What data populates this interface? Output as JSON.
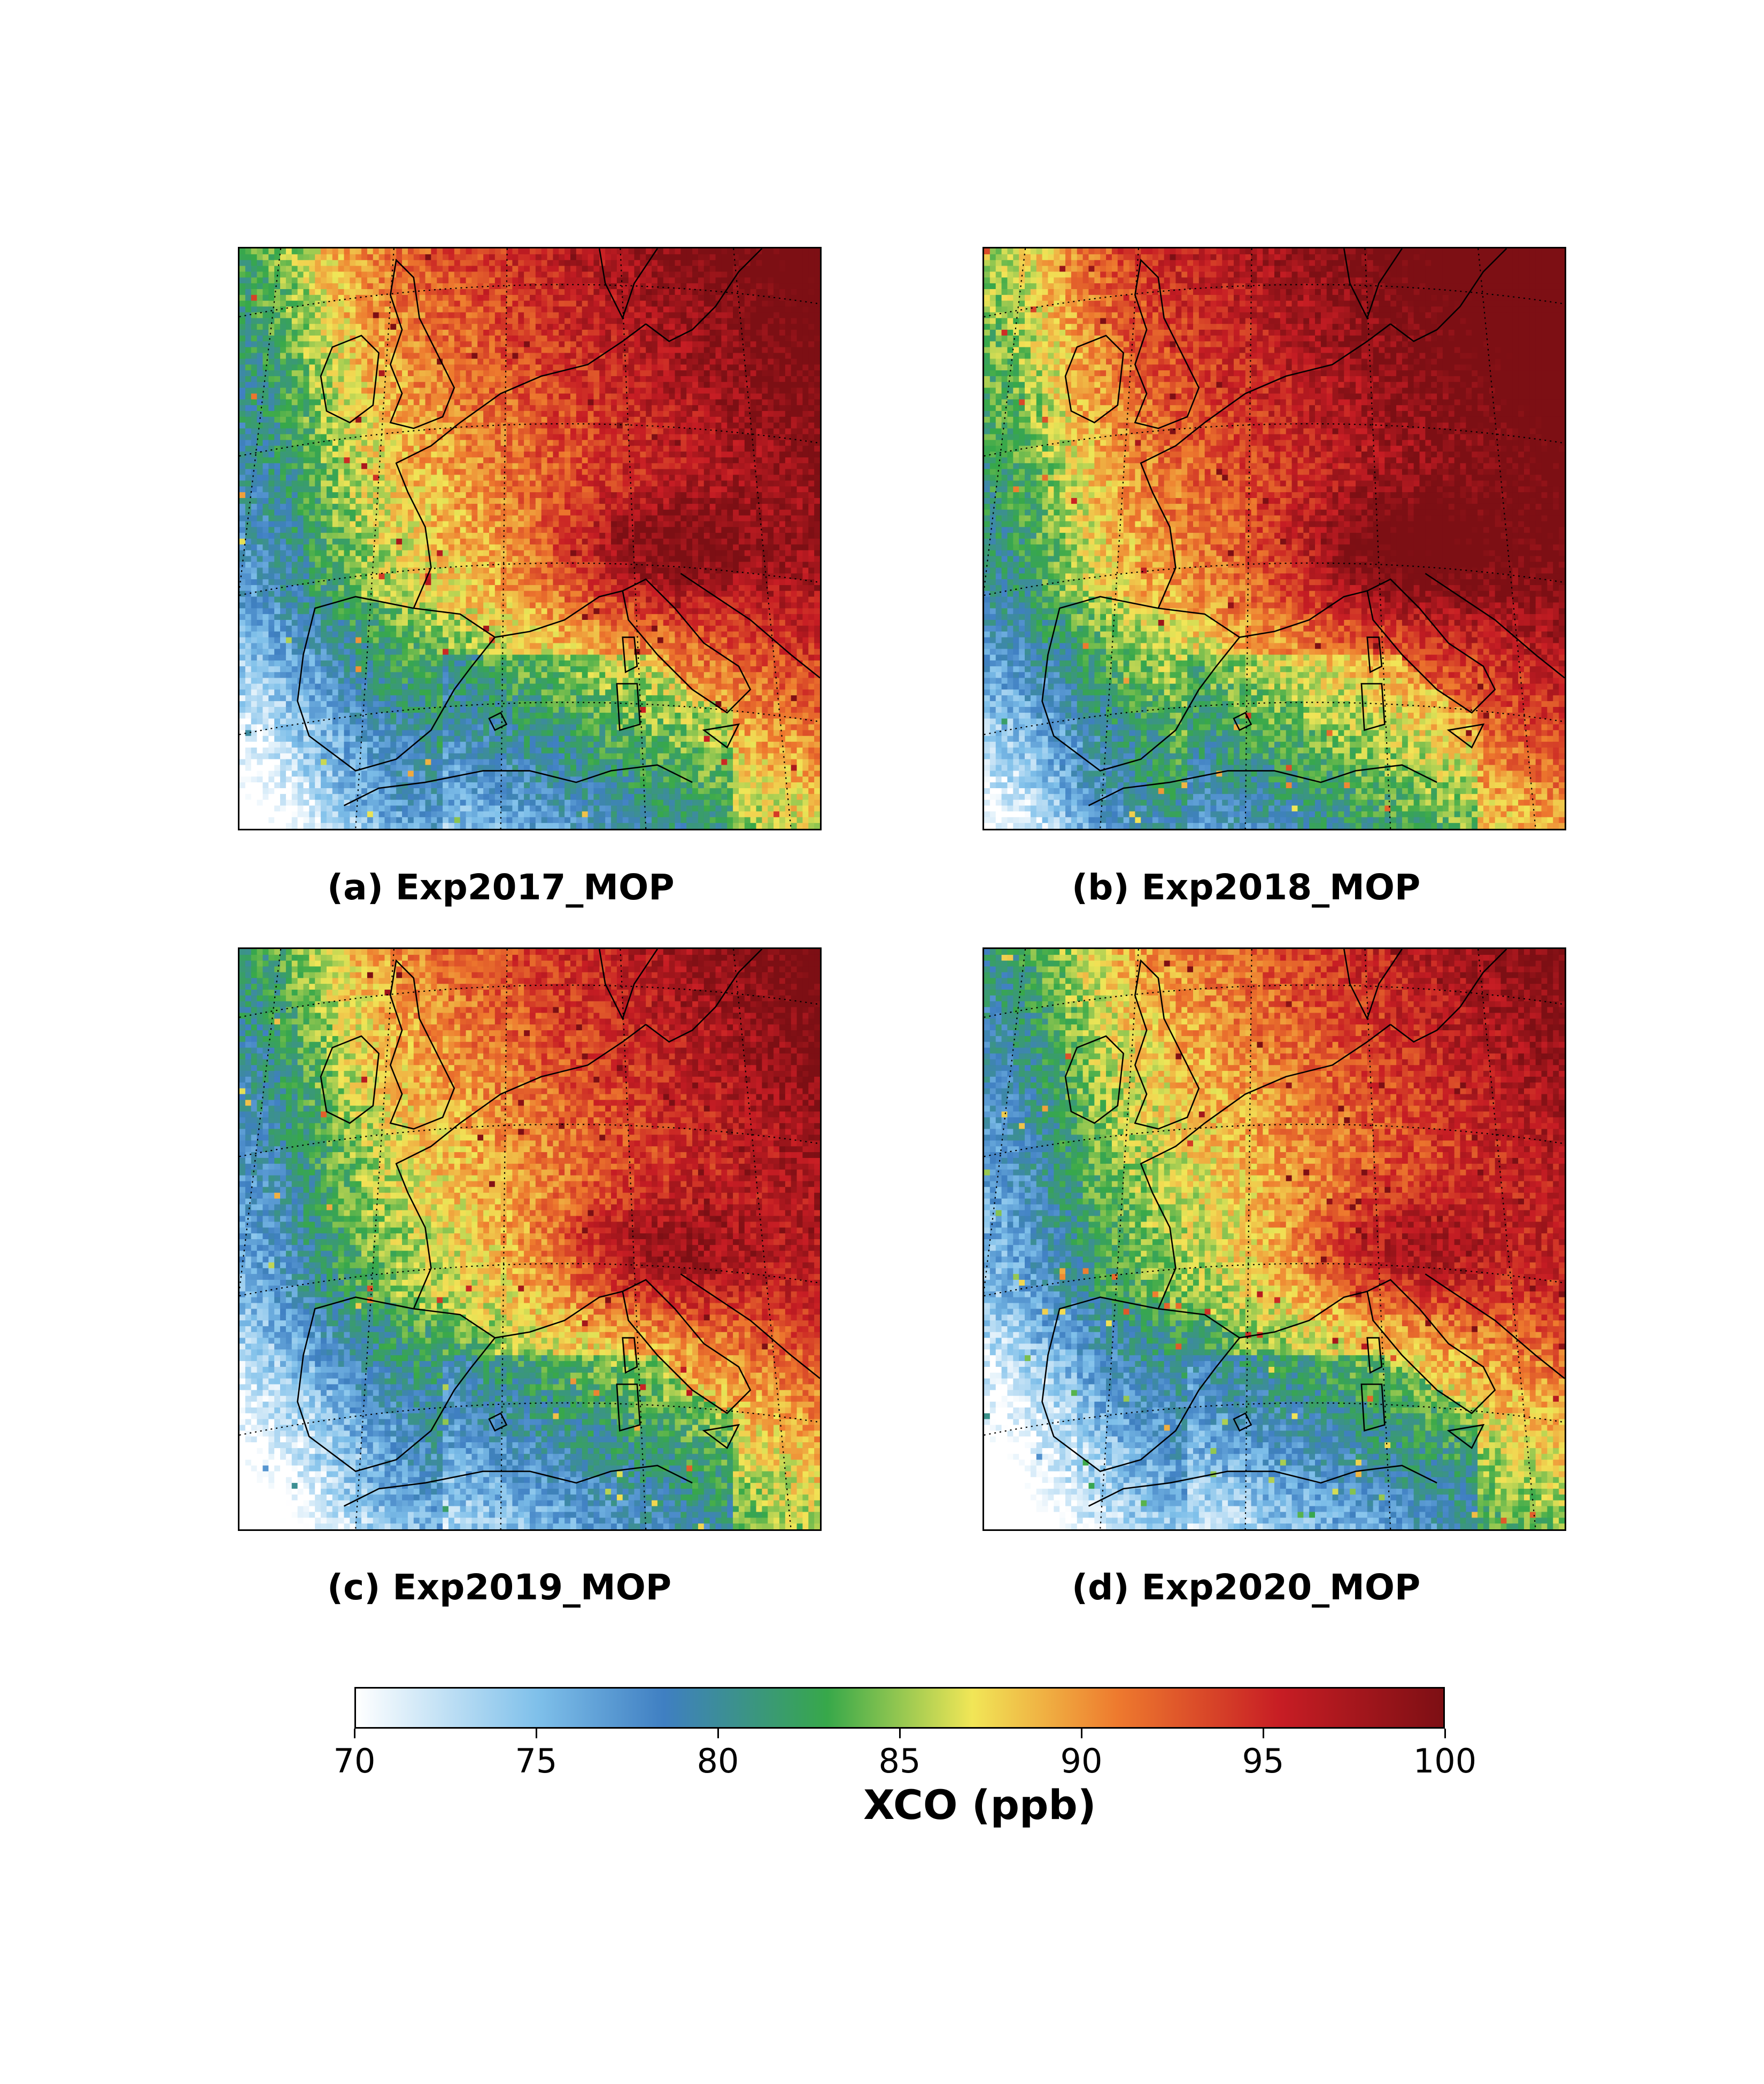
{
  "panels": [
    {
      "id": "a",
      "caption": "(a) Exp2017_MOP",
      "level_shift": 0.0
    },
    {
      "id": "b",
      "caption": "(b) Exp2018_MOP",
      "level_shift": 2.5
    },
    {
      "id": "c",
      "caption": "(c) Exp2019_MOP",
      "level_shift": -1.5
    },
    {
      "id": "d",
      "caption": "(d) Exp2020_MOP",
      "level_shift": -2.5
    }
  ],
  "colorbar": {
    "label": "XCO (ppb)",
    "min": 70,
    "max": 100,
    "ticks": [
      "70",
      "75",
      "80",
      "85",
      "90",
      "95",
      "100"
    ],
    "colors": [
      "#ffffff",
      "#7fc0ea",
      "#3f7fc2",
      "#37a84a",
      "#f1e657",
      "#ee7a2e",
      "#c71d24",
      "#7d0f14"
    ],
    "stops": [
      70,
      75,
      78.5,
      83,
      87,
      91,
      95.5,
      100
    ]
  }
}
